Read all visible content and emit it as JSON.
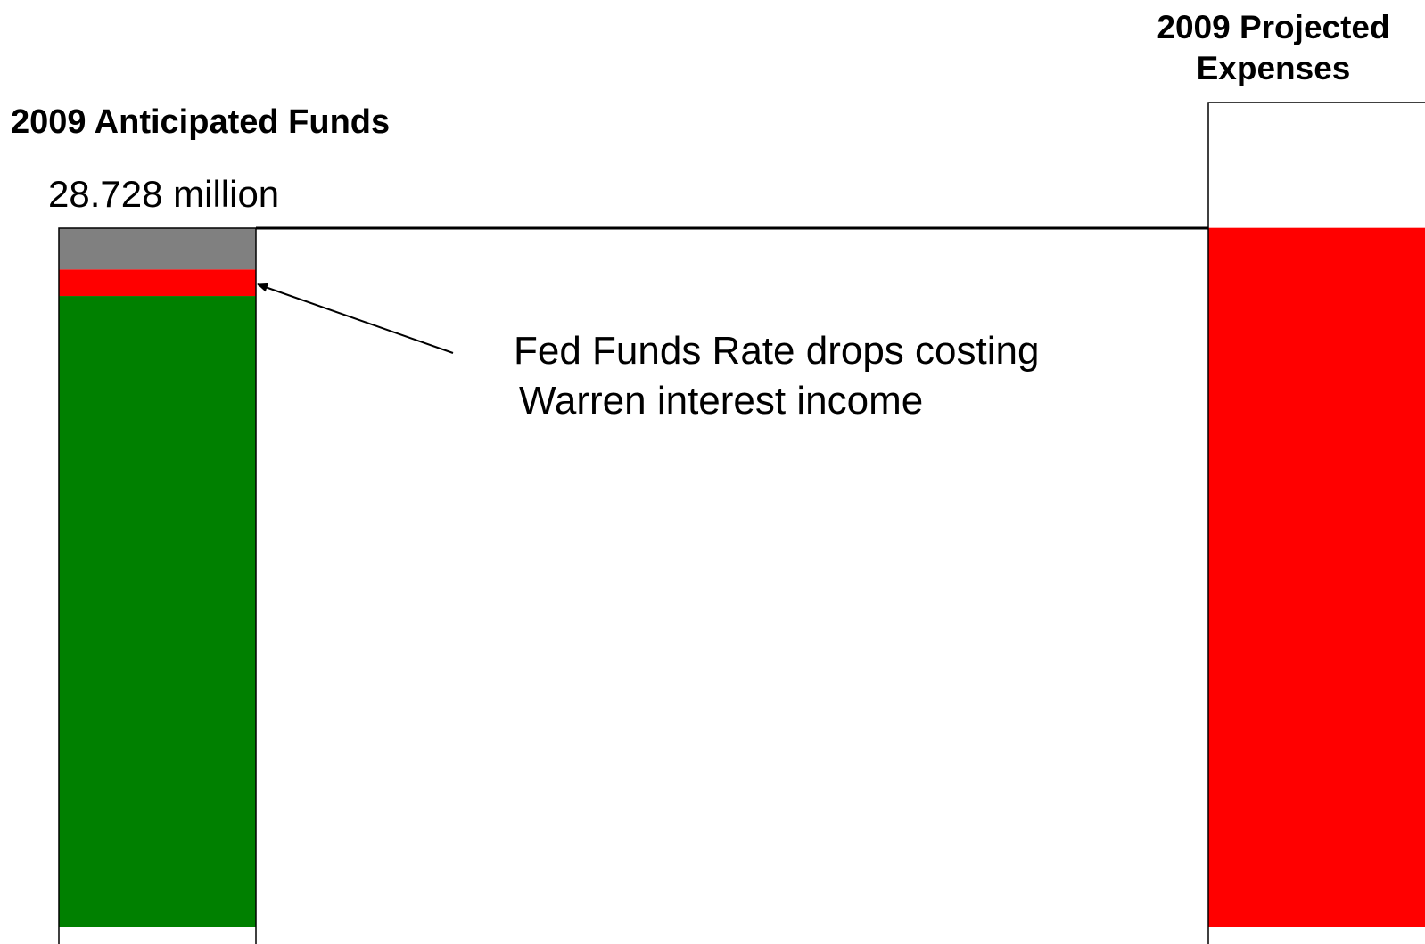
{
  "chart_data": {
    "type": "bar",
    "stacked": true,
    "bars": [
      {
        "title": "2009 Anticipated Funds",
        "total_label": "28.728 million",
        "segments": [
          {
            "color": "#008000",
            "fraction": 0.903
          },
          {
            "color": "#ff0000",
            "fraction": 0.038
          },
          {
            "color": "#808080",
            "fraction": 0.059
          }
        ]
      },
      {
        "title_lines": [
          "2009 Projected",
          "Expenses"
        ],
        "segments": [
          {
            "color": "#ff0000",
            "fraction": 0.848
          },
          {
            "color": "#ffffff",
            "fraction": 0.152
          }
        ]
      }
    ],
    "annotation": {
      "lines": [
        "Fed Funds Rate drops costing",
        "Warren interest income"
      ],
      "points_to": "red segment of 2009 Anticipated Funds"
    },
    "reference_line": "top of 2009 Anticipated Funds bar"
  }
}
